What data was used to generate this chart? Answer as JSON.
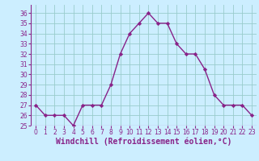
{
  "x": [
    0,
    1,
    2,
    3,
    4,
    5,
    6,
    7,
    8,
    9,
    10,
    11,
    12,
    13,
    14,
    15,
    16,
    17,
    18,
    19,
    20,
    21,
    22,
    23
  ],
  "y": [
    27,
    26,
    26,
    26,
    25,
    27,
    27,
    27,
    29,
    32,
    34,
    35,
    36,
    35,
    35,
    33,
    32,
    32,
    30.5,
    28,
    27,
    27,
    27,
    26
  ],
  "line_color": "#882288",
  "marker": "D",
  "marker_size": 2.2,
  "bg_color": "#cceeff",
  "grid_color": "#99cccc",
  "xlabel": "Windchill (Refroidissement éolien,°C)",
  "xlabel_fontsize": 7,
  "xlim": [
    -0.5,
    23.5
  ],
  "ylim": [
    25,
    36.8
  ],
  "yticks": [
    25,
    26,
    27,
    28,
    29,
    30,
    31,
    32,
    33,
    34,
    35,
    36
  ],
  "xticks": [
    0,
    1,
    2,
    3,
    4,
    5,
    6,
    7,
    8,
    9,
    10,
    11,
    12,
    13,
    14,
    15,
    16,
    17,
    18,
    19,
    20,
    21,
    22,
    23
  ],
  "tick_fontsize": 5.5,
  "xlabel_fontsize_bold": 7,
  "line_width": 1.0
}
